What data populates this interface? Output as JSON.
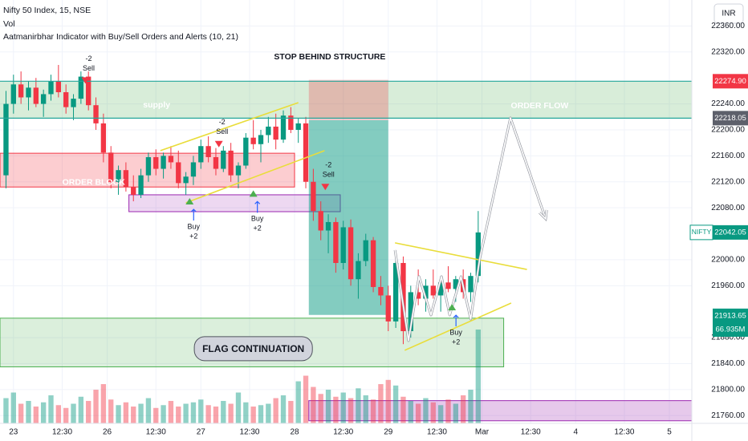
{
  "chart_data": {
    "type": "candlestick",
    "title": "Nifty 50 Index, 15, NSE",
    "subtitle": "Vol",
    "indicator": "Aatmanirbhar Indicator with Buy/Sell Orders and Alerts (10, 21)",
    "currency": "INR",
    "up_color": "#089981",
    "down_color": "#f23645",
    "grid": true,
    "x": [
      -1,
      0,
      1,
      2,
      3,
      4,
      5,
      6,
      7,
      8,
      9,
      10,
      11,
      12,
      13,
      14,
      15,
      16,
      17,
      18,
      19,
      20,
      21,
      22,
      23,
      24,
      25,
      26,
      27,
      28,
      29,
      30,
      31,
      32,
      33,
      34,
      35,
      36,
      37,
      38,
      39,
      40,
      41,
      42,
      43,
      44,
      45,
      46,
      47,
      48,
      49,
      50,
      51,
      52,
      53,
      54,
      55,
      56,
      57,
      58,
      59,
      60,
      61,
      62
    ],
    "open": [
      22130,
      22240,
      22270,
      22250,
      22265,
      22240,
      22255,
      22275,
      22258,
      22235,
      22248,
      22282,
      22238,
      22210,
      22165,
      22120,
      22138,
      22112,
      22100,
      22130,
      22158,
      22140,
      22160,
      22150,
      22118,
      22128,
      22150,
      22175,
      22158,
      22140,
      22168,
      22130,
      22145,
      22188,
      22178,
      22192,
      22205,
      22185,
      22222,
      22200,
      22210,
      22120,
      22075,
      22045,
      22058,
      21995,
      22050,
      21970,
      21998,
      22030,
      21958,
      21945,
      21905,
      21995,
      21890,
      21950,
      21940,
      21960,
      21945,
      21965,
      21955,
      21970,
      21950,
      21975
    ],
    "high": [
      22260,
      22285,
      22290,
      22275,
      22280,
      22262,
      22285,
      22300,
      22270,
      22255,
      22290,
      22290,
      22250,
      22225,
      22175,
      22145,
      22150,
      22130,
      22140,
      22165,
      22170,
      22165,
      22175,
      22168,
      22135,
      22160,
      22185,
      22190,
      22172,
      22175,
      22180,
      22150,
      22195,
      22215,
      22200,
      22220,
      22225,
      22230,
      22235,
      22218,
      22220,
      22140,
      22090,
      22070,
      22065,
      22060,
      22062,
      22010,
      22040,
      22035,
      21975,
      21960,
      22010,
      22005,
      21960,
      21985,
      21970,
      21985,
      21975,
      21990,
      21975,
      21985,
      21980,
      22075
    ],
    "low": [
      22110,
      22225,
      22240,
      22230,
      22235,
      22220,
      22245,
      22250,
      22225,
      22215,
      22240,
      22230,
      22200,
      22150,
      22110,
      22100,
      22105,
      22090,
      22095,
      22120,
      22130,
      22125,
      22140,
      22110,
      22100,
      22115,
      22140,
      22150,
      22130,
      22135,
      22120,
      22110,
      22140,
      22170,
      22150,
      22180,
      22170,
      22180,
      22195,
      22180,
      22110,
      22060,
      22030,
      22010,
      21980,
      21985,
      21960,
      21940,
      21990,
      21950,
      21930,
      21890,
      21895,
      21870,
      21880,
      21930,
      21920,
      21940,
      21920,
      21950,
      21935,
      21940,
      21935,
      21965
    ],
    "close": [
      22240,
      22270,
      22250,
      22265,
      22240,
      22255,
      22275,
      22258,
      22235,
      22248,
      22282,
      22238,
      22210,
      22165,
      22120,
      22138,
      22112,
      22100,
      22130,
      22158,
      22140,
      22160,
      22150,
      22118,
      22128,
      22150,
      22175,
      22158,
      22140,
      22168,
      22130,
      22145,
      22188,
      22178,
      22192,
      22205,
      22185,
      22222,
      22200,
      22210,
      22120,
      22075,
      22045,
      22058,
      21995,
      22050,
      21970,
      21998,
      22030,
      21958,
      21945,
      21905,
      21995,
      21890,
      21950,
      21940,
      21960,
      21945,
      21965,
      21955,
      21970,
      21950,
      21975,
      22042.05
    ],
    "volume": [
      18,
      22,
      14,
      16,
      12,
      15,
      20,
      13,
      11,
      14,
      19,
      16,
      24,
      28,
      17,
      13,
      15,
      12,
      14,
      18,
      11,
      13,
      16,
      12,
      14,
      15,
      17,
      13,
      12,
      16,
      14,
      22,
      15,
      12,
      13,
      14,
      18,
      20,
      16,
      30,
      34,
      26,
      21,
      24,
      19,
      22,
      18,
      25,
      20,
      17,
      28,
      31,
      27,
      19,
      16,
      14,
      18,
      15,
      13,
      17,
      14,
      20,
      24,
      66.935
    ],
    "volume_label": "66.935M",
    "vlim": [
      0,
      302
    ],
    "xlim": [
      -1.8,
      90.5
    ],
    "xticks": [
      {
        "value": 0,
        "label": "23"
      },
      {
        "value": 6.5,
        "label": "12:30"
      },
      {
        "value": 12.5,
        "label": "26"
      },
      {
        "value": 19,
        "label": "12:30"
      },
      {
        "value": 25,
        "label": "27"
      },
      {
        "value": 31.5,
        "label": "12:30"
      },
      {
        "value": 37.5,
        "label": "28"
      },
      {
        "value": 44,
        "label": "12:30"
      },
      {
        "value": 50,
        "label": "29"
      },
      {
        "value": 56.5,
        "label": "12:30"
      },
      {
        "value": 62.5,
        "label": "Mar"
      },
      {
        "value": 69,
        "label": "12:30"
      },
      {
        "value": 75,
        "label": "4"
      },
      {
        "value": 81.5,
        "label": "12:30"
      },
      {
        "value": 87.5,
        "label": "5"
      }
    ],
    "ylim": [
      21748,
      22400
    ],
    "yticks": [
      {
        "value": 22360,
        "label": "22360.00"
      },
      {
        "value": 22320,
        "label": "22320.00"
      },
      {
        "value": 22240,
        "label": "22240.00"
      },
      {
        "value": 22200,
        "label": "22200.00"
      },
      {
        "value": 22160,
        "label": "22160.00"
      },
      {
        "value": 22120,
        "label": "22120.00"
      },
      {
        "value": 22080,
        "label": "22080.00"
      },
      {
        "value": 22000,
        "label": "22000.00"
      },
      {
        "value": 21960,
        "label": "21960.00"
      },
      {
        "value": 21880,
        "label": "21880.00"
      },
      {
        "value": 21840,
        "label": "21840.00"
      },
      {
        "value": 21800,
        "label": "21800.00"
      },
      {
        "value": 21760,
        "label": "21760.00"
      }
    ],
    "levels": [
      {
        "value": 22274.9,
        "label": "22274.90",
        "color": "#f23645",
        "line": "#26a69a"
      },
      {
        "value": 22218.05,
        "label": "22218.05",
        "color": "#5d606b",
        "line": "#26a69a"
      },
      {
        "value": 22042.05,
        "label": "22042.05",
        "color": "#089981",
        "symbol": "NIFTY"
      },
      {
        "value": 21913.65,
        "label": "21913.65",
        "color": "#089981"
      }
    ],
    "zones": [
      {
        "x": [
          -1.8,
          90.5
        ],
        "y": [
          22218,
          22275
        ],
        "fill": "rgba(76,175,80,0.22)",
        "stroke": "none"
      },
      {
        "x": [
          -1.8,
          37.5
        ],
        "y": [
          22112,
          22164
        ],
        "fill": "rgba(242,54,69,0.25)",
        "stroke": "#f23645"
      },
      {
        "x": [
          15.4,
          43.6
        ],
        "y": [
          22074,
          22100
        ],
        "fill": "rgba(156,39,176,0.18)",
        "stroke": "#9c27b0"
      },
      {
        "x": [
          -1.8,
          65.4
        ],
        "y": [
          21835,
          21910
        ],
        "fill": "rgba(76,175,80,0.2)",
        "stroke": "#4caf50"
      },
      {
        "x": [
          39.4,
          90.5
        ],
        "y": [
          21752,
          21783
        ],
        "fill": "rgba(156,39,176,0.25)",
        "stroke": "#9c27b0"
      },
      {
        "x": [
          39.4,
          50
        ],
        "y": [
          22215,
          22277
        ],
        "fill": "rgba(242,54,69,0.28)",
        "stroke": "none"
      },
      {
        "x": [
          39.4,
          50
        ],
        "y": [
          21915,
          22215
        ],
        "fill": "rgba(8,153,129,0.5)",
        "stroke": "none"
      }
    ],
    "lines": [
      {
        "color": "#e9dd3a",
        "points": [
          [
            19.6,
            22168
          ],
          [
            38.0,
            22242
          ]
        ]
      },
      {
        "color": "#e9dd3a",
        "points": [
          [
            23.0,
            22087.7
          ],
          [
            41.5,
            22168
          ]
        ]
      },
      {
        "color": "#e9dd3a",
        "points": [
          [
            50.9,
            22026
          ],
          [
            68.5,
            21985
          ]
        ]
      },
      {
        "color": "#e9dd3a",
        "points": [
          [
            52.2,
            21860.5
          ],
          [
            66.4,
            21933.3
          ]
        ]
      },
      {
        "color": "#ffffff",
        "arrow": true,
        "points": [
          [
            50.9,
            22014.8
          ],
          [
            52.7,
            21875.3
          ],
          [
            54.1,
            21974.1
          ],
          [
            55.7,
            21914.8
          ],
          [
            57.1,
            21974
          ],
          [
            58.2,
            21914.8
          ],
          [
            59.7,
            21974
          ],
          [
            61.0,
            21908.6
          ],
          [
            62.2,
            22001.2
          ],
          [
            66.3,
            22218.5
          ],
          [
            71.0,
            22063
          ]
        ]
      }
    ],
    "annotations": [
      {
        "text": "STOP BEHIND STRUCTURE",
        "x": 42.2,
        "y": 22312,
        "color": "#131722"
      },
      {
        "text": "supply",
        "x": 19.1,
        "y": 22238,
        "color": "#ffffff"
      },
      {
        "text": "ORDER BLOCK",
        "x": 10.7,
        "y": 22119,
        "color": "#ffffff"
      },
      {
        "text": "ORDER FLOW",
        "x": 70.2,
        "y": 22237,
        "color": "#ffffff"
      },
      {
        "text": "FLAG CONTINUATION",
        "x": 32,
        "y": 21862,
        "color": "#131722",
        "pill": "#d1d4dc"
      }
    ],
    "signals": [
      {
        "side": "Sell",
        "qty": "-2",
        "x": 9.6,
        "y": 22276
      },
      {
        "side": "Sell",
        "qty": "-2",
        "x": 27.4,
        "y": 22178
      },
      {
        "side": "Sell",
        "qty": "-2",
        "x": 41.6,
        "y": 22112
      },
      {
        "side": "Buy",
        "qty": "+2",
        "x": 23.5,
        "y": 22090
      },
      {
        "side": "Buy",
        "qty": "+2",
        "x": 32,
        "y": 22102
      },
      {
        "side": "Buy",
        "qty": "+2",
        "x": 58.5,
        "y": 21927
      }
    ]
  }
}
